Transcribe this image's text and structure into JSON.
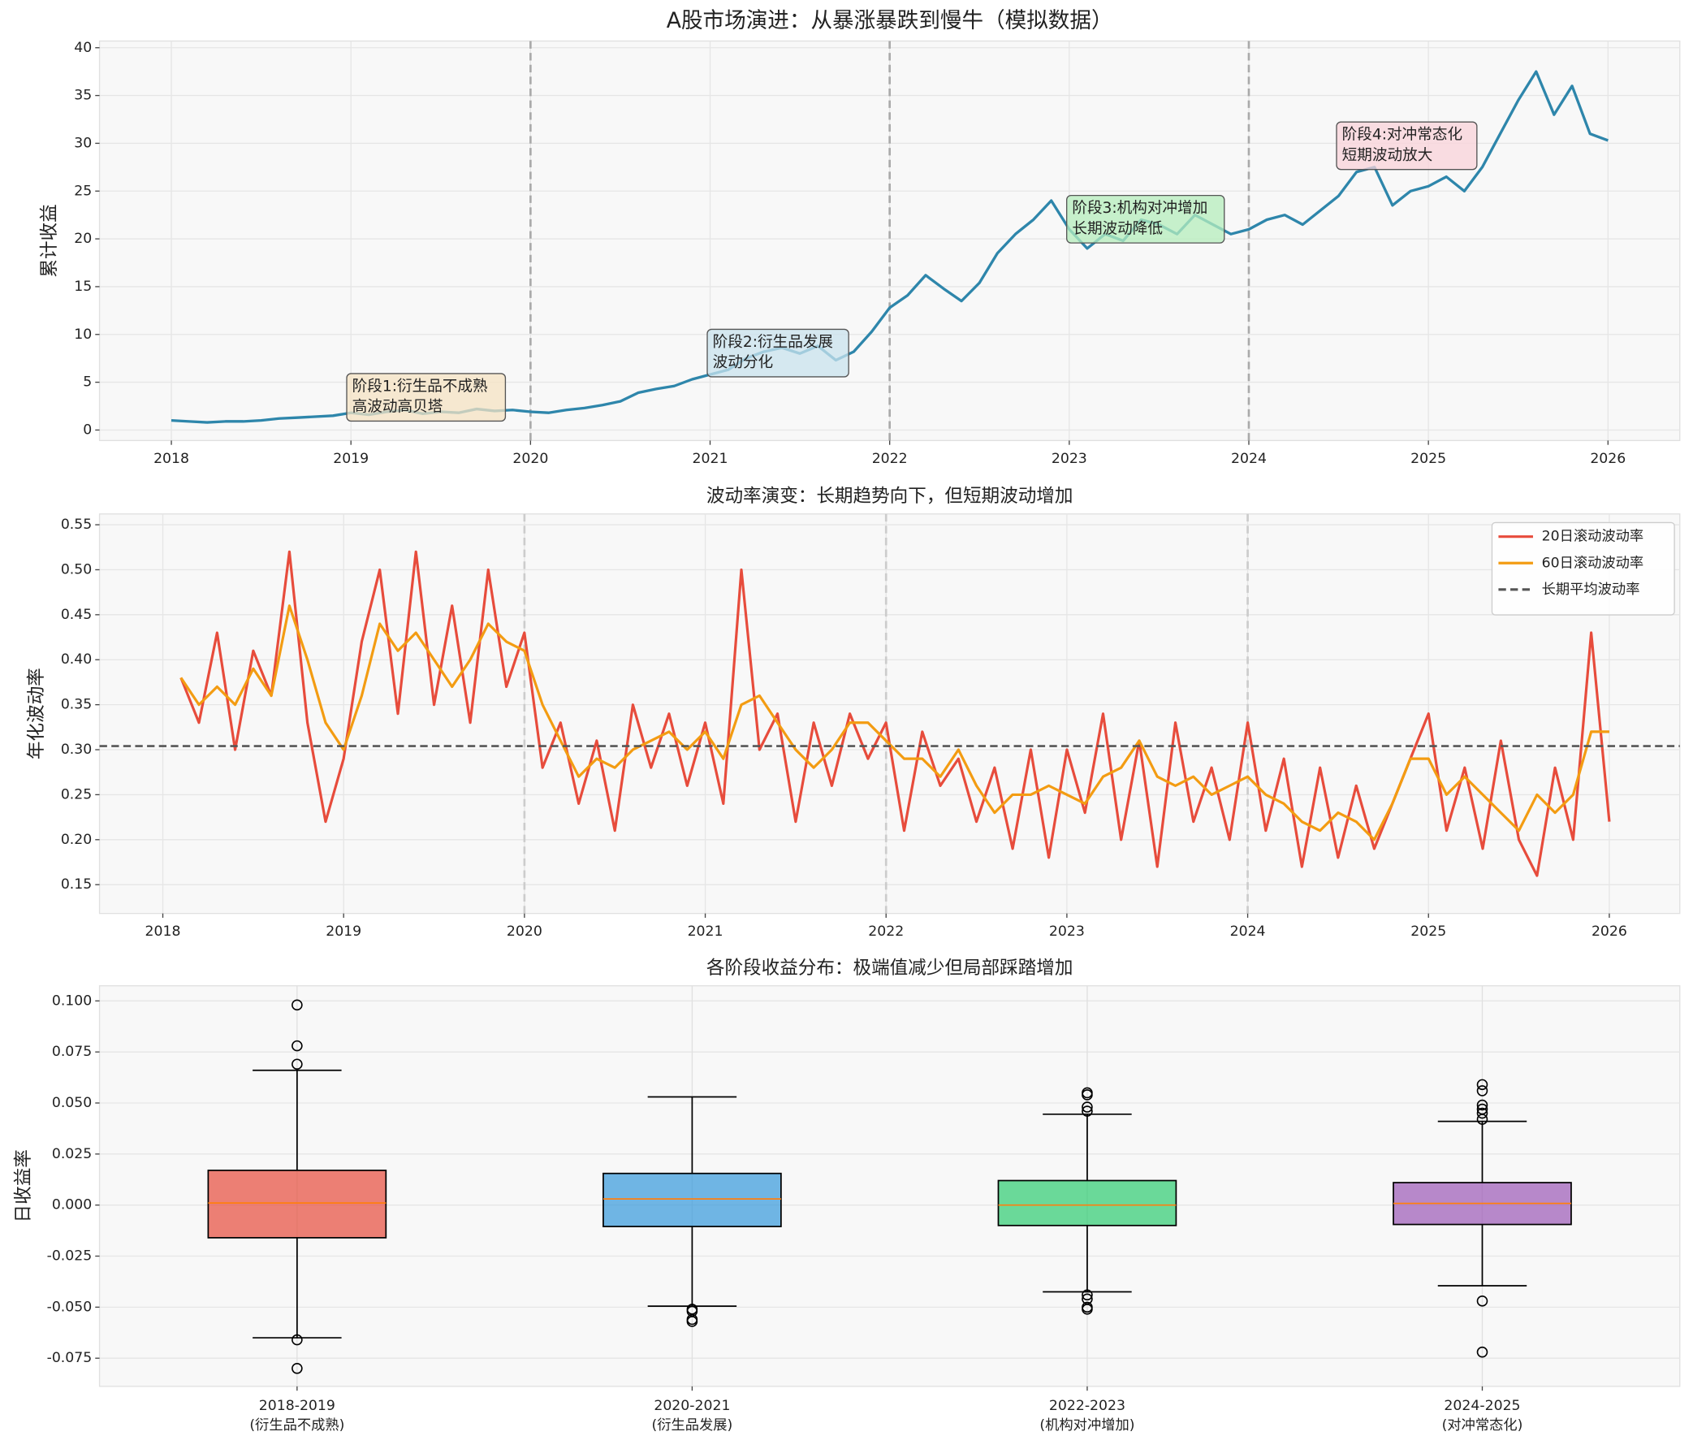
{
  "chart_data": [
    {
      "type": "line",
      "title": "A股市场演进：从暴涨暴跌到慢牛（模拟数据）",
      "ylabel": "累计收益",
      "x": [
        2018.0,
        2018.1,
        2018.2,
        2018.3,
        2018.4,
        2018.5,
        2018.6,
        2018.7,
        2018.8,
        2018.9,
        2019.0,
        2019.1,
        2019.2,
        2019.3,
        2019.4,
        2019.5,
        2019.6,
        2019.7,
        2019.8,
        2019.9,
        2020.0,
        2020.1,
        2020.2,
        2020.3,
        2020.4,
        2020.5,
        2020.6,
        2020.7,
        2020.8,
        2020.9,
        2021.0,
        2021.1,
        2021.2,
        2021.3,
        2021.4,
        2021.5,
        2021.6,
        2021.7,
        2021.8,
        2021.9,
        2022.0,
        2022.1,
        2022.2,
        2022.3,
        2022.4,
        2022.5,
        2022.6,
        2022.7,
        2022.8,
        2022.9,
        2023.0,
        2023.1,
        2023.2,
        2023.3,
        2023.4,
        2023.5,
        2023.6,
        2023.7,
        2023.8,
        2023.9,
        2024.0,
        2024.1,
        2024.2,
        2024.3,
        2024.4,
        2024.5,
        2024.6,
        2024.7,
        2024.8,
        2024.9,
        2025.0,
        2025.1,
        2025.2,
        2025.3,
        2025.4,
        2025.5,
        2025.6,
        2025.7,
        2025.8,
        2025.9,
        2026.0
      ],
      "values": [
        1.0,
        0.9,
        0.8,
        0.9,
        0.9,
        1.0,
        1.2,
        1.3,
        1.4,
        1.5,
        1.8,
        1.6,
        1.9,
        2.1,
        1.7,
        1.9,
        1.8,
        2.2,
        2.0,
        2.1,
        1.9,
        1.8,
        2.1,
        2.3,
        2.6,
        3.0,
        3.9,
        4.3,
        4.6,
        5.3,
        5.8,
        6.3,
        7.5,
        8.2,
        8.6,
        8.0,
        8.8,
        7.3,
        8.2,
        10.3,
        12.8,
        14.1,
        16.2,
        14.8,
        13.5,
        15.4,
        18.5,
        20.5,
        22.0,
        24.0,
        21.0,
        19.0,
        20.5,
        19.8,
        22.0,
        21.5,
        20.5,
        22.5,
        21.5,
        20.5,
        21.0,
        22.0,
        22.5,
        21.5,
        23.0,
        24.5,
        27.0,
        27.5,
        23.5,
        25.0,
        25.5,
        26.5,
        25.0,
        27.5,
        31.0,
        34.5,
        37.5,
        33.0,
        36.0,
        31.0,
        30.3
      ],
      "color": "#2e86ab",
      "xlim": [
        2017.6,
        2026.4
      ],
      "xticks": [
        2018,
        2019,
        2020,
        2021,
        2022,
        2023,
        2024,
        2025,
        2026
      ],
      "ylim": [
        -1.1,
        40.7
      ],
      "yticks": [
        0,
        5,
        10,
        15,
        20,
        25,
        30,
        35,
        40
      ],
      "vlines": [
        2020,
        2022,
        2024
      ],
      "grid": true,
      "annotations": [
        {
          "text": [
            "阶段1:衍生品不成熟",
            "高波动高贝塔"
          ],
          "color": "#f5e3c3"
        },
        {
          "text": [
            "阶段2:衍生品发展",
            "波动分化"
          ],
          "color": "#c9e3ee"
        },
        {
          "text": [
            "阶段3:机构对冲增加",
            "长期波动降低"
          ],
          "color": "#b5edbc"
        },
        {
          "text": [
            "阶段4:对冲常态化",
            "短期波动放大"
          ],
          "color": "#f9d3da"
        }
      ]
    },
    {
      "type": "line",
      "title": "波动率演变：长期趋势向下，但短期波动增加",
      "ylabel": "年化波动率",
      "x": [
        2018.1,
        2018.2,
        2018.3,
        2018.4,
        2018.5,
        2018.6,
        2018.7,
        2018.8,
        2018.9,
        2019.0,
        2019.1,
        2019.2,
        2019.3,
        2019.4,
        2019.5,
        2019.6,
        2019.7,
        2019.8,
        2019.9,
        2020.0,
        2020.1,
        2020.2,
        2020.3,
        2020.4,
        2020.5,
        2020.6,
        2020.7,
        2020.8,
        2020.9,
        2021.0,
        2021.1,
        2021.2,
        2021.3,
        2021.4,
        2021.5,
        2021.6,
        2021.7,
        2021.8,
        2021.9,
        2022.0,
        2022.1,
        2022.2,
        2022.3,
        2022.4,
        2022.5,
        2022.6,
        2022.7,
        2022.8,
        2022.9,
        2023.0,
        2023.1,
        2023.2,
        2023.3,
        2023.4,
        2023.5,
        2023.6,
        2023.7,
        2023.8,
        2023.9,
        2024.0,
        2024.1,
        2024.2,
        2024.3,
        2024.4,
        2024.5,
        2024.6,
        2024.7,
        2024.8,
        2024.9,
        2025.0,
        2025.1,
        2025.2,
        2025.3,
        2025.4,
        2025.5,
        2025.6,
        2025.7,
        2025.8,
        2025.9,
        2026.0
      ],
      "series": [
        {
          "name": "20日滚动波动率",
          "color": "#e74c3c",
          "values": [
            0.38,
            0.33,
            0.43,
            0.3,
            0.41,
            0.36,
            0.52,
            0.33,
            0.22,
            0.29,
            0.42,
            0.5,
            0.34,
            0.52,
            0.35,
            0.46,
            0.33,
            0.5,
            0.37,
            0.43,
            0.28,
            0.33,
            0.24,
            0.31,
            0.21,
            0.35,
            0.28,
            0.34,
            0.26,
            0.33,
            0.24,
            0.5,
            0.3,
            0.34,
            0.22,
            0.33,
            0.26,
            0.34,
            0.29,
            0.33,
            0.21,
            0.32,
            0.26,
            0.29,
            0.22,
            0.28,
            0.19,
            0.3,
            0.18,
            0.3,
            0.23,
            0.34,
            0.2,
            0.31,
            0.17,
            0.33,
            0.22,
            0.28,
            0.2,
            0.33,
            0.21,
            0.29,
            0.17,
            0.28,
            0.18,
            0.26,
            0.19,
            0.24,
            0.29,
            0.34,
            0.21,
            0.28,
            0.19,
            0.31,
            0.2,
            0.16,
            0.28,
            0.2,
            0.43,
            0.22
          ]
        },
        {
          "name": "60日滚动波动率",
          "color": "#f39c12",
          "values": [
            0.38,
            0.35,
            0.37,
            0.35,
            0.39,
            0.36,
            0.46,
            0.4,
            0.33,
            0.3,
            0.36,
            0.44,
            0.41,
            0.43,
            0.4,
            0.37,
            0.4,
            0.44,
            0.42,
            0.41,
            0.35,
            0.31,
            0.27,
            0.29,
            0.28,
            0.3,
            0.31,
            0.32,
            0.3,
            0.32,
            0.29,
            0.35,
            0.36,
            0.33,
            0.3,
            0.28,
            0.3,
            0.33,
            0.33,
            0.31,
            0.29,
            0.29,
            0.27,
            0.3,
            0.26,
            0.23,
            0.25,
            0.25,
            0.26,
            0.25,
            0.24,
            0.27,
            0.28,
            0.31,
            0.27,
            0.26,
            0.27,
            0.25,
            0.26,
            0.27,
            0.25,
            0.24,
            0.22,
            0.21,
            0.23,
            0.22,
            0.2,
            0.24,
            0.29,
            0.29,
            0.25,
            0.27,
            0.25,
            0.23,
            0.21,
            0.25,
            0.23,
            0.25,
            0.32,
            0.32
          ]
        }
      ],
      "reference_line": {
        "name": "长期平均波动率",
        "value": 0.304,
        "color": "#555555"
      },
      "xlim": [
        2017.65,
        2026.39
      ],
      "xticks": [
        2018,
        2019,
        2020,
        2021,
        2022,
        2023,
        2024,
        2025,
        2026
      ],
      "ylim": [
        0.118,
        0.562
      ],
      "yticks": [
        0.15,
        {
          "value": 0.2,
          "label": "0.20"
        },
        0.25,
        {
          "value": 0.3,
          "label": "0.30"
        },
        0.35,
        {
          "value": 0.4,
          "label": "0.40"
        },
        0.45,
        {
          "value": 0.5,
          "label": "0.50"
        },
        0.55
      ],
      "vlines": [
        2020,
        2022,
        2024
      ],
      "grid": true,
      "legend": "upper right"
    },
    {
      "type": "box",
      "title": "各阶段收益分布：极端值减少但局部踩踏增加",
      "ylabel": "日收益率",
      "categories": [
        [
          "2018-2019",
          "(衍生品不成熟)"
        ],
        [
          "2020-2021",
          "(衍生品发展)"
        ],
        [
          "2022-2023",
          "(机构对冲增加)"
        ],
        [
          "2024-2025",
          "(对冲常态化)"
        ]
      ],
      "colors": [
        "#e74c3c",
        "#3498db",
        "#2ecc71",
        "#9b59b6"
      ],
      "median_color": "#ff7f0e",
      "boxes": [
        {
          "whislo": -0.065,
          "q1": -0.016,
          "med": 0.001,
          "q3": 0.017,
          "whishi": 0.066,
          "fliers": [
            0.098,
            0.078,
            0.069,
            -0.066,
            -0.08
          ]
        },
        {
          "whislo": -0.0495,
          "q1": -0.0105,
          "med": 0.003,
          "q3": 0.0155,
          "whishi": 0.053,
          "fliers": [
            -0.051,
            -0.052,
            -0.056,
            -0.057
          ]
        },
        {
          "whislo": -0.0425,
          "q1": -0.01,
          "med": 0.0,
          "q3": 0.012,
          "whishi": 0.0445,
          "fliers": [
            0.054,
            0.055,
            0.048,
            0.046,
            -0.044,
            -0.046,
            -0.05,
            -0.051
          ]
        },
        {
          "whislo": -0.0395,
          "q1": -0.0095,
          "med": 0.0008,
          "q3": 0.011,
          "whishi": 0.041,
          "fliers": [
            0.059,
            0.056,
            0.049,
            0.047,
            0.045,
            0.042,
            -0.047,
            -0.072
          ]
        }
      ],
      "ylim": [
        -0.0888,
        0.1074
      ],
      "yticks": [
        -0.075,
        {
          "value": -0.05,
          "label": "-0.050"
        },
        -0.025,
        {
          "value": 0,
          "label": "0.000"
        },
        0.025,
        {
          "value": 0.05,
          "label": "0.050"
        },
        0.075,
        {
          "value": 0.1,
          "label": "0.100"
        }
      ],
      "grid": true
    }
  ]
}
